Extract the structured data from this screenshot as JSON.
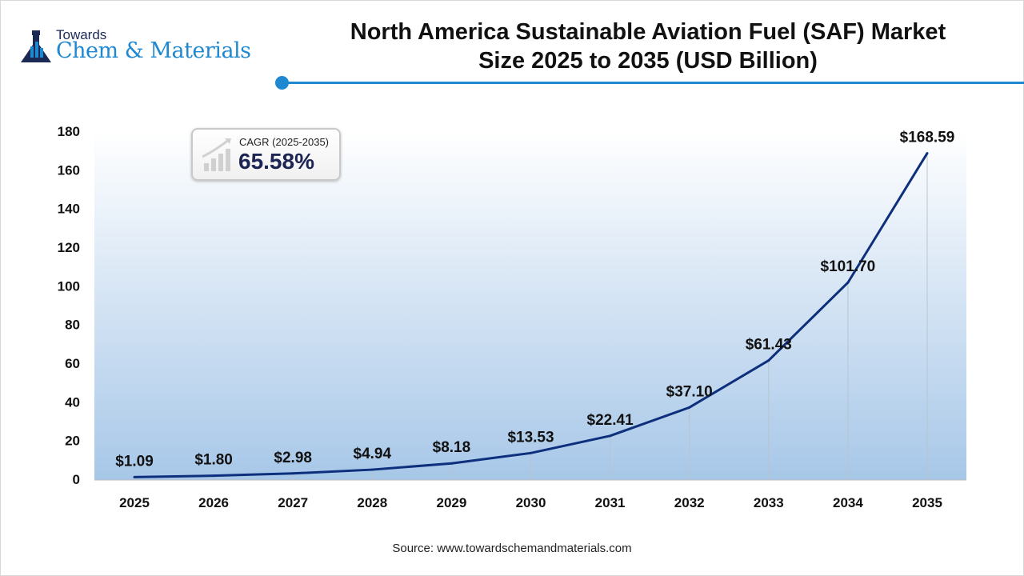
{
  "logo": {
    "line1": "Towards",
    "line2": "Chem & Materials"
  },
  "header": {
    "title_line1": "North America Sustainable Aviation Fuel (SAF) Market",
    "title_line2": "Size 2025 to 2035 (USD Billion)"
  },
  "cagr": {
    "label": "CAGR (2025-2035)",
    "value": "65.58%"
  },
  "source": "Source: www.towardschemandmaterials.com",
  "colors": {
    "line": "#0d2f7c",
    "accent": "#1e88d0",
    "title": "#1b2452"
  },
  "chart_data": {
    "type": "line",
    "title": "North America Sustainable Aviation Fuel (SAF) Market Size 2025 to 2035 (USD Billion)",
    "xlabel": "",
    "ylabel": "",
    "categories": [
      "2025",
      "2026",
      "2027",
      "2028",
      "2029",
      "2030",
      "2031",
      "2032",
      "2033",
      "2034",
      "2035"
    ],
    "values": [
      1.09,
      1.8,
      2.98,
      4.94,
      8.18,
      13.53,
      22.41,
      37.1,
      61.43,
      101.7,
      168.59
    ],
    "labels": [
      "$1.09",
      "$1.80",
      "$2.98",
      "$4.94",
      "$8.18",
      "$13.53",
      "$22.41",
      "$37.10",
      "$61.43",
      "$101.70",
      "$168.59"
    ],
    "ylim": [
      0,
      180
    ],
    "yticks": [
      0,
      20,
      40,
      60,
      80,
      100,
      120,
      140,
      160,
      180
    ],
    "grid": false
  }
}
